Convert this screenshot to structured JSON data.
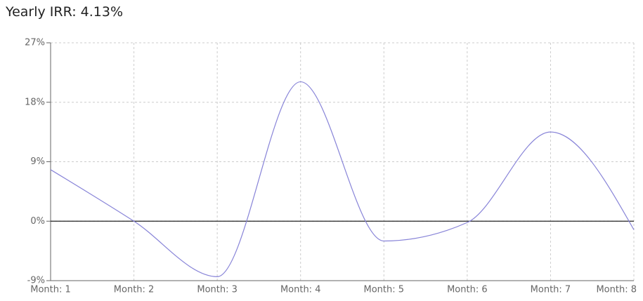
{
  "chart_data": {
    "type": "line",
    "title": "Yearly IRR: 4.13%",
    "categories": [
      "Month: 1",
      "Month: 2",
      "Month: 3",
      "Month: 4",
      "Month: 5",
      "Month: 6",
      "Month: 7",
      "Month: 8"
    ],
    "series": [
      {
        "color": "#8884d8",
        "values": [
          7.8,
          0,
          -8.4,
          21.1,
          -3.0,
          -0.2,
          13.5,
          -1.3
        ]
      }
    ],
    "ylim": [
      -9,
      27
    ],
    "yticks": [
      {
        "value": -9,
        "label": "-9%"
      },
      {
        "value": 0,
        "label": "0%"
      },
      {
        "value": 9,
        "label": "9%"
      },
      {
        "value": 18,
        "label": "18%"
      },
      {
        "value": 27,
        "label": "27%"
      }
    ],
    "reference_line": 0,
    "grid": true
  }
}
